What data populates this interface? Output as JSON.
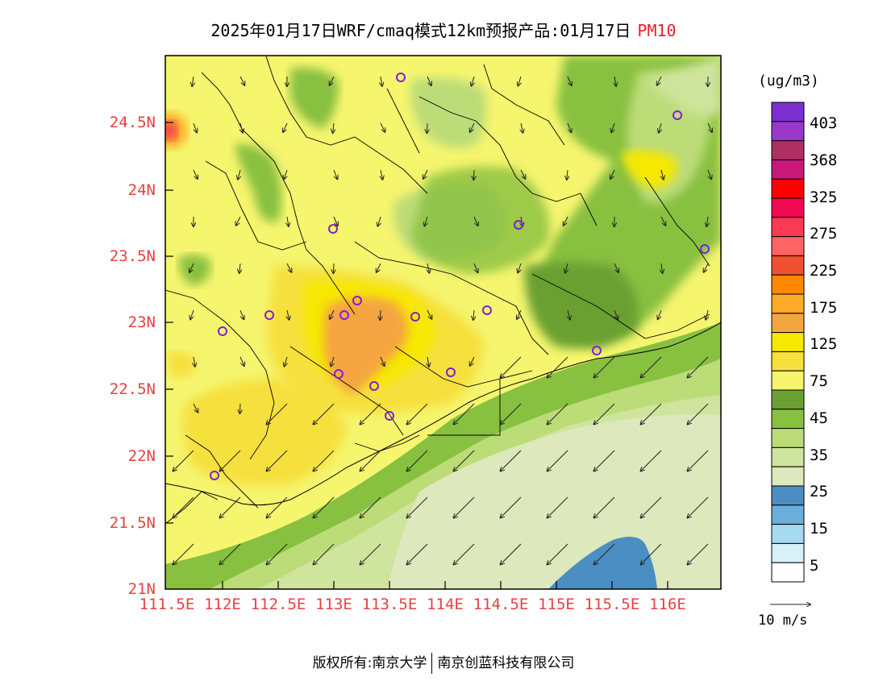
{
  "title": {
    "text": "2025年01月17日WRF/cmaq模式12km预报产品:01月17日",
    "pollutant": "PM10"
  },
  "axes": {
    "y_ticks": [
      "24.5N",
      "24N",
      "23.5N",
      "23N",
      "22.5N",
      "22N",
      "21.5N",
      "21N"
    ],
    "x_ticks": [
      "111.5E",
      "112E",
      "112.5E",
      "113E",
      "113.5E",
      "114E",
      "114.5E",
      "115E",
      "115.5E",
      "116E"
    ]
  },
  "colorbar": {
    "units": "(ug/m3)",
    "labels": [
      "403",
      "368",
      "325",
      "275",
      "225",
      "175",
      "125",
      "75",
      "45",
      "35",
      "25",
      "15",
      "5"
    ],
    "colors": [
      "#7b2fd0",
      "#9a36c8",
      "#b02e62",
      "#c8187a",
      "#ff0000",
      "#f00850",
      "#f93a52",
      "#ff6464",
      "#ee5030",
      "#ff8800",
      "#ffaa28",
      "#f5a442",
      "#f6e800",
      "#f6e03c",
      "#f5f56e",
      "#6aa032",
      "#88c040",
      "#bcdc78",
      "#cfe49c",
      "#dde8bc",
      "#4a8ec4",
      "#6aaedc",
      "#a6daf2",
      "#d8f0f8",
      "#ffffff"
    ]
  },
  "wind_reference": {
    "label": "10 m/s"
  },
  "footer": {
    "left": "版权所有:南京大学",
    "right": "南京创蓝科技有限公司"
  }
}
